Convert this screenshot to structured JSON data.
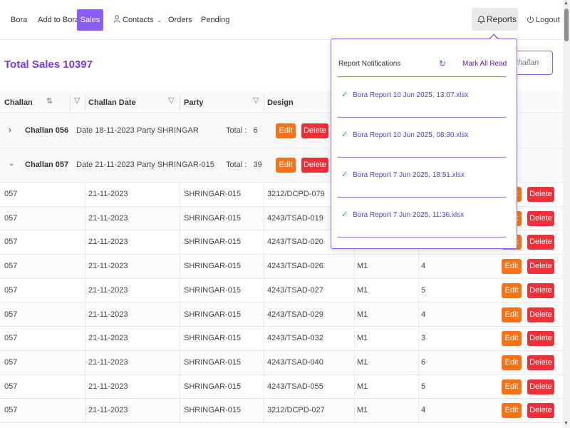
{
  "nav": {
    "items": [
      "Bora",
      "Add to Bora",
      "Sales",
      "Contacts",
      "Orders",
      "Pending"
    ],
    "active": "Sales",
    "reports_label": "Reports",
    "logout_label": "Logout"
  },
  "page": {
    "title": "Total Sales 10397",
    "search_placeholder": "Challan"
  },
  "table": {
    "headers": [
      "Challan",
      "Challan Date",
      "Party",
      "Design"
    ],
    "groups": [
      {
        "label": "Challan 056",
        "date": "Date 18-11-2023",
        "party": "Party SHRINGAR",
        "total": "Total :   6",
        "expanded": false
      },
      {
        "label": "Challan 057",
        "date": "Date 21-11-2023",
        "party": "Party SHRINGAR-015",
        "total": "Total :   39",
        "expanded": true
      }
    ],
    "edit_label": "Edit",
    "delete_label": "Delete",
    "rows": [
      {
        "challan": "057",
        "date": "21-11-2023",
        "party": "SHRINGAR-015",
        "design": "3212/DCPD-079",
        "m": "",
        "qty": ""
      },
      {
        "challan": "057",
        "date": "21-11-2023",
        "party": "SHRINGAR-015",
        "design": "4243/TSAD-019",
        "m": "",
        "qty": ""
      },
      {
        "challan": "057",
        "date": "21-11-2023",
        "party": "SHRINGAR-015",
        "design": "4243/TSAD-020",
        "m": "",
        "qty": ""
      },
      {
        "challan": "057",
        "date": "21-11-2023",
        "party": "SHRINGAR-015",
        "design": "4243/TSAD-026",
        "m": "M1",
        "qty": "4"
      },
      {
        "challan": "057",
        "date": "21-11-2023",
        "party": "SHRINGAR-015",
        "design": "4243/TSAD-027",
        "m": "M1",
        "qty": "5"
      },
      {
        "challan": "057",
        "date": "21-11-2023",
        "party": "SHRINGAR-015",
        "design": "4243/TSAD-029",
        "m": "M1",
        "qty": "4"
      },
      {
        "challan": "057",
        "date": "21-11-2023",
        "party": "SHRINGAR-015",
        "design": "4243/TSAD-032",
        "m": "M1",
        "qty": "3"
      },
      {
        "challan": "057",
        "date": "21-11-2023",
        "party": "SHRINGAR-015",
        "design": "4243/TSAD-040",
        "m": "M1",
        "qty": "6"
      },
      {
        "challan": "057",
        "date": "21-11-2023",
        "party": "SHRINGAR-015",
        "design": "4243/TSAD-055",
        "m": "M1",
        "qty": "5"
      },
      {
        "challan": "057",
        "date": "21-11-2023",
        "party": "SHRINGAR-015",
        "design": "3212/DCPD-027",
        "m": "M1",
        "qty": "4"
      }
    ]
  },
  "notifications": {
    "title": "Report Notifications",
    "mark_all_read": "Mark All Read",
    "items": [
      "Bora Report 10 Jun 2025, 13:07.xlsx",
      "Bora Report 10 Jun 2025, 08:30.xlsx",
      "Bora Report 7 Jun 2025, 18:51.xlsx",
      "Bora Report 7 Jun 2025, 11:36.xlsx"
    ]
  },
  "colors": {
    "accent": "#8b5cf6",
    "edit": "#f97316",
    "delete": "#ef3038",
    "check": "#22c55e"
  }
}
